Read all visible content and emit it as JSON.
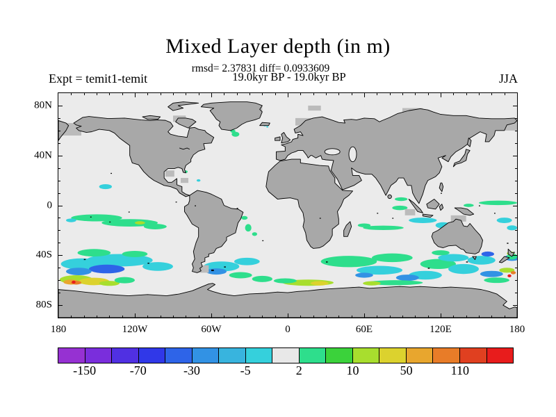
{
  "header": {
    "title": "Mixed Layer depth (in m)",
    "stats": "rmsd= 2.37831 diff= 0.0933609",
    "period": "19.0kyr BP - 19.0kyr BP",
    "experiment": "Expt = temit1-temit",
    "season": "JJA"
  },
  "axes": {
    "lon": {
      "major": [
        {
          "deg": -180,
          "label": "180"
        },
        {
          "deg": -120,
          "label": "120W"
        },
        {
          "deg": -60,
          "label": "60W"
        },
        {
          "deg": 0,
          "label": "0"
        },
        {
          "deg": 60,
          "label": "60E"
        },
        {
          "deg": 120,
          "label": "120E"
        },
        {
          "deg": 180,
          "label": "180"
        }
      ],
      "minor_step": 10,
      "range": [
        -180,
        180
      ]
    },
    "lat": {
      "major": [
        {
          "deg": 80,
          "label": "80N"
        },
        {
          "deg": 40,
          "label": "40N"
        },
        {
          "deg": 0,
          "label": "0"
        },
        {
          "deg": -40,
          "label": "40S"
        },
        {
          "deg": -80,
          "label": "80S"
        }
      ],
      "minor_step": 10,
      "range": [
        -90,
        90
      ]
    }
  },
  "colorbar": {
    "colors": [
      "#9631D2",
      "#7A2EDC",
      "#5030E2",
      "#3038E8",
      "#2E64E8",
      "#3292E4",
      "#38B4DE",
      "#35D0DC",
      "#E8E8E8",
      "#2EDE8C",
      "#3BD23B",
      "#A8DE2E",
      "#DCD22E",
      "#E8A62E",
      "#E87C28",
      "#E04020",
      "#E81C1C"
    ],
    "labels": [
      {
        "boundary_index": 1,
        "text": "-150"
      },
      {
        "boundary_index": 3,
        "text": "-70"
      },
      {
        "boundary_index": 5,
        "text": "-30"
      },
      {
        "boundary_index": 7,
        "text": "-5"
      },
      {
        "boundary_index": 9,
        "text": "2"
      },
      {
        "boundary_index": 11,
        "text": "10"
      },
      {
        "boundary_index": 13,
        "text": "50"
      },
      {
        "boundary_index": 15,
        "text": "110"
      }
    ]
  },
  "map_colors": {
    "ocean": "#EBEBEB",
    "land": "#A8A8A8",
    "mask_block": "#BBBBBB",
    "coastline": "#000000"
  },
  "chart_data": {
    "type": "heatmap",
    "subtype": "filled-contour-difference-map",
    "title": "Mixed Layer depth (in m)",
    "units": "m",
    "stats": {
      "rmsd": 2.37831,
      "diff": 0.0933609
    },
    "comparison": "19.0kyr BP - 19.0kyr BP",
    "experiment": "temit1-temit",
    "season": "JJA",
    "projection": "equirectangular",
    "lon_range": [
      -180,
      180
    ],
    "lat_range": [
      -90,
      90
    ],
    "xticks": [
      "180",
      "120W",
      "60W",
      "0",
      "60E",
      "120E",
      "180"
    ],
    "yticks": [
      "80N",
      "40N",
      "0",
      "40S",
      "80S"
    ],
    "labeled_contour_levels": [
      -150,
      -70,
      -30,
      -5,
      2,
      10,
      50,
      110
    ],
    "n_color_bins": 17,
    "legend_position": "bottom"
  }
}
